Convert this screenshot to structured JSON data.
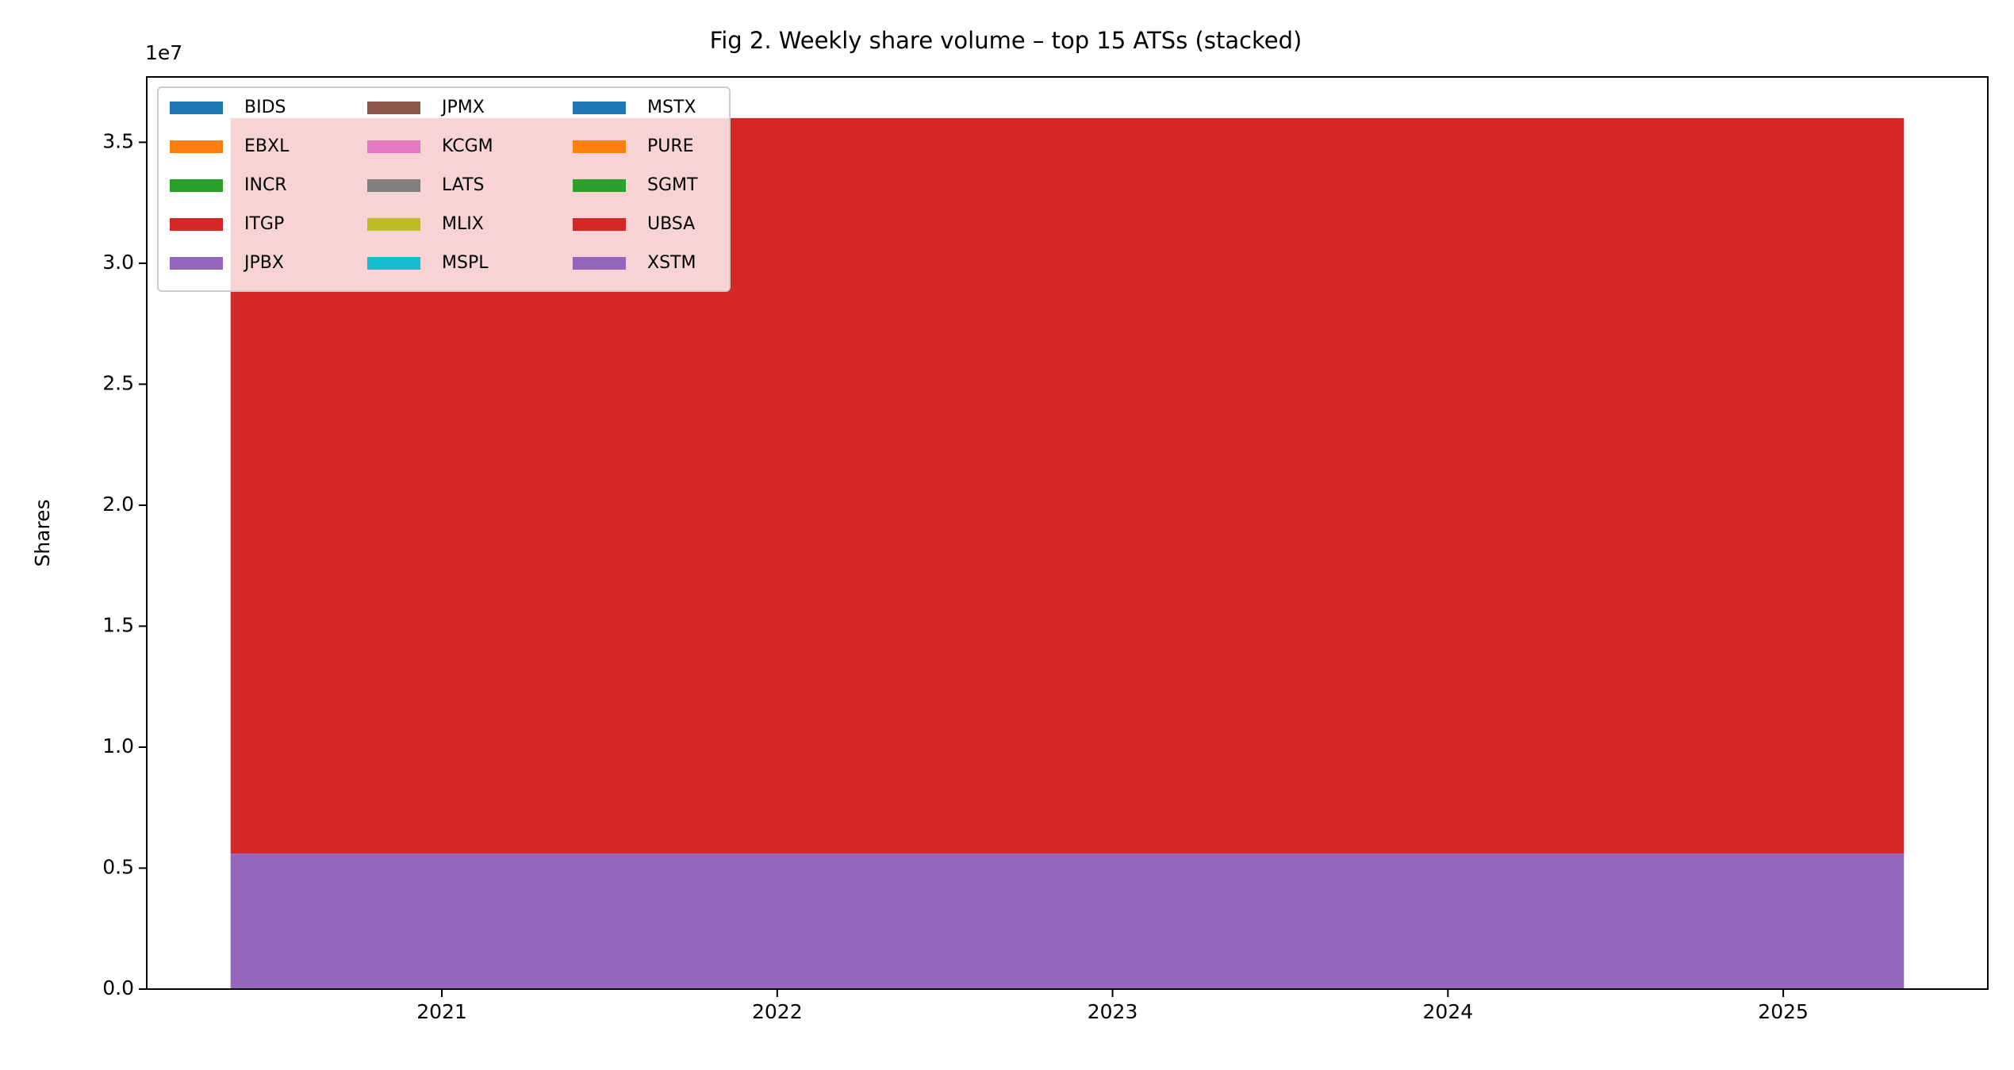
{
  "chart_data": {
    "type": "stacked_area",
    "title": "Fig 2. Weekly share volume – top 15 ATSs (stacked)",
    "y_label": "Shares",
    "y_offset_label": "1e7",
    "x": [
      2020.37,
      2025.36
    ],
    "xlim": [
      2020.12,
      2025.61
    ],
    "xticks": [
      2021,
      2022,
      2023,
      2024,
      2025
    ],
    "ylim": [
      0,
      37700000
    ],
    "yticks": [
      {
        "value": 0,
        "label": "0.0"
      },
      {
        "value": 5000000,
        "label": "0.5"
      },
      {
        "value": 10000000,
        "label": "1.0"
      },
      {
        "value": 15000000,
        "label": "1.5"
      },
      {
        "value": 20000000,
        "label": "2.0"
      },
      {
        "value": 25000000,
        "label": "2.5"
      },
      {
        "value": 30000000,
        "label": "3.0"
      },
      {
        "value": 35000000,
        "label": "3.5"
      }
    ],
    "legend_position": "upper left",
    "series": [
      {
        "name": "BIDS",
        "color": "#1f77b4",
        "values": [
          0,
          0
        ]
      },
      {
        "name": "EBXL",
        "color": "#ff7f0e",
        "values": [
          0,
          0
        ]
      },
      {
        "name": "INCR",
        "color": "#2ca02c",
        "values": [
          0,
          0
        ]
      },
      {
        "name": "ITGP",
        "color": "#d62728",
        "values": [
          0,
          0
        ]
      },
      {
        "name": "JPBX",
        "color": "#9467bd",
        "values": [
          5600000,
          5600000
        ]
      },
      {
        "name": "JPMX",
        "color": "#8c564b",
        "values": [
          0,
          0
        ]
      },
      {
        "name": "KCGM",
        "color": "#e377c2",
        "values": [
          0,
          0
        ]
      },
      {
        "name": "LATS",
        "color": "#7f7f7f",
        "values": [
          0,
          0
        ]
      },
      {
        "name": "MLIX",
        "color": "#bcbd22",
        "values": [
          0,
          0
        ]
      },
      {
        "name": "MSPL",
        "color": "#17becf",
        "values": [
          0,
          0
        ]
      },
      {
        "name": "MSTX",
        "color": "#1f77b4",
        "values": [
          0,
          0
        ]
      },
      {
        "name": "PURE",
        "color": "#ff7f0e",
        "values": [
          0,
          0
        ]
      },
      {
        "name": "SGMT",
        "color": "#2ca02c",
        "values": [
          0,
          0
        ]
      },
      {
        "name": "UBSA",
        "color": "#d62728",
        "values": [
          30400000,
          30400000
        ]
      },
      {
        "name": "XSTM",
        "color": "#9467bd",
        "values": [
          0,
          0
        ]
      }
    ]
  }
}
